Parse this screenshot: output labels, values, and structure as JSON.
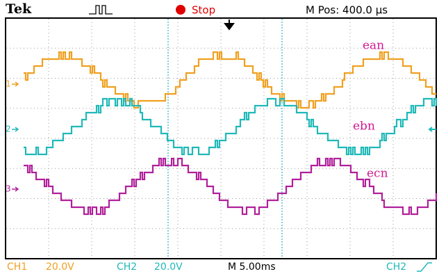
{
  "header": {
    "brand": "Tek",
    "status": "Stop",
    "position": "M Pos: 400.0 μs"
  },
  "traces": [
    {
      "label": "ean",
      "marker": "1"
    },
    {
      "label": "ebn",
      "marker": "2"
    },
    {
      "label": "ecn",
      "marker": "3"
    }
  ],
  "footer": {
    "ch1": "CH1",
    "ch1_scale": "20.0V",
    "ch2": "CH2",
    "ch2_scale": "20.0V",
    "timebase": "M 5.00ms",
    "trigger": "CH2"
  }
}
